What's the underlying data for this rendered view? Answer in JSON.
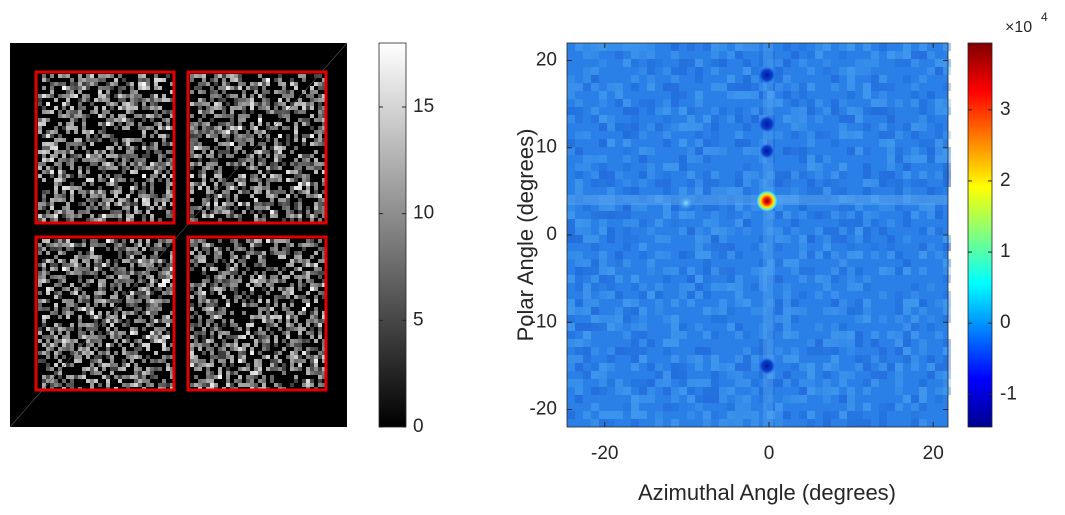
{
  "chart_data": [
    {
      "type": "image",
      "colormap": "gray",
      "clim": [
        0,
        18
      ],
      "cticks": [
        0,
        5,
        10,
        15
      ]
    },
    {
      "type": "heatmap",
      "colormap": "jet",
      "xlabel": "Azimuthal Angle (degrees)",
      "ylabel": "Polar Angle (degrees)",
      "xlim": [
        -24.6,
        21.8
      ],
      "ylim": [
        -22,
        22
      ],
      "xticks": [
        -20,
        0,
        20
      ],
      "yticks": [
        -20,
        -10,
        0,
        10,
        20
      ],
      "clim": [
        -1.46,
        3.94
      ],
      "cticks": [
        -1,
        0,
        1,
        2,
        3
      ],
      "colorbar_scale": {
        "base": "×10",
        "exponent": "4"
      }
    }
  ]
}
